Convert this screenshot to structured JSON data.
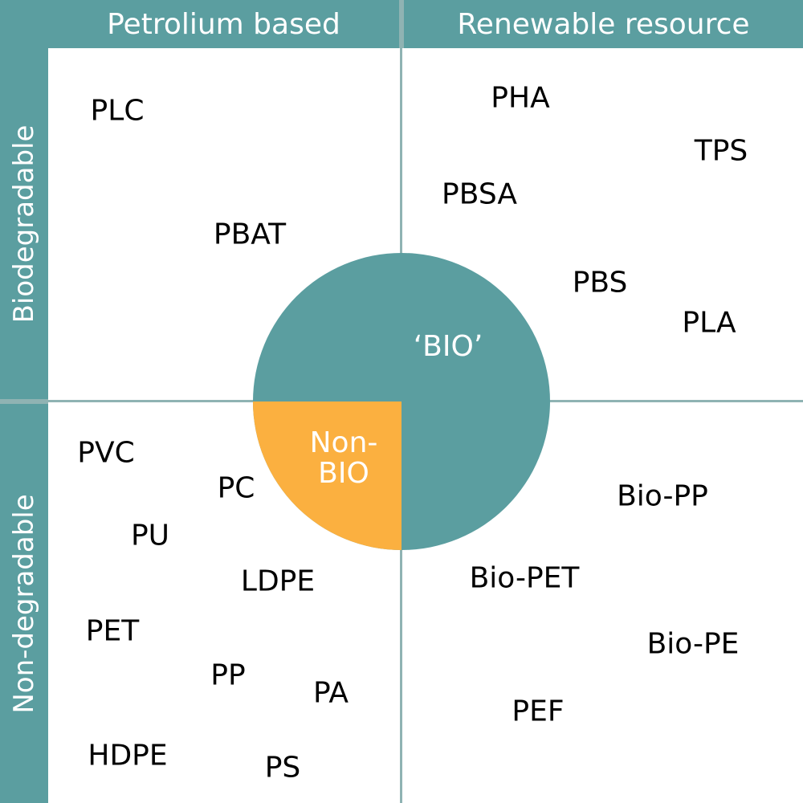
{
  "headers": {
    "columns": [
      "Petrolium based",
      "Renewable resource"
    ],
    "rows": [
      "Biodegradable",
      "Non-degradable"
    ]
  },
  "center": {
    "bio_label": "‘BIO’",
    "nonbio_line1": "Non-",
    "nonbio_line2": "BIO"
  },
  "quadrants": {
    "petroleum_biodegradable": [
      "PLC",
      "PBAT"
    ],
    "renewable_biodegradable": [
      "PHA",
      "TPS",
      "PBSA",
      "PBS",
      "PLA"
    ],
    "petroleum_nondegradable": [
      "PVC",
      "PC",
      "PU",
      "LDPE",
      "PET",
      "PP",
      "PA",
      "HDPE",
      "PS"
    ],
    "renewable_nondegradable": [
      "Bio-PP",
      "Bio-PET",
      "Bio-PE",
      "PEF"
    ]
  },
  "colors": {
    "header_band": "#5b9ea0",
    "bio_circle": "#5b9ea0",
    "nonbio_sector": "#fbb040",
    "grid_line": "#8fb3b3"
  }
}
